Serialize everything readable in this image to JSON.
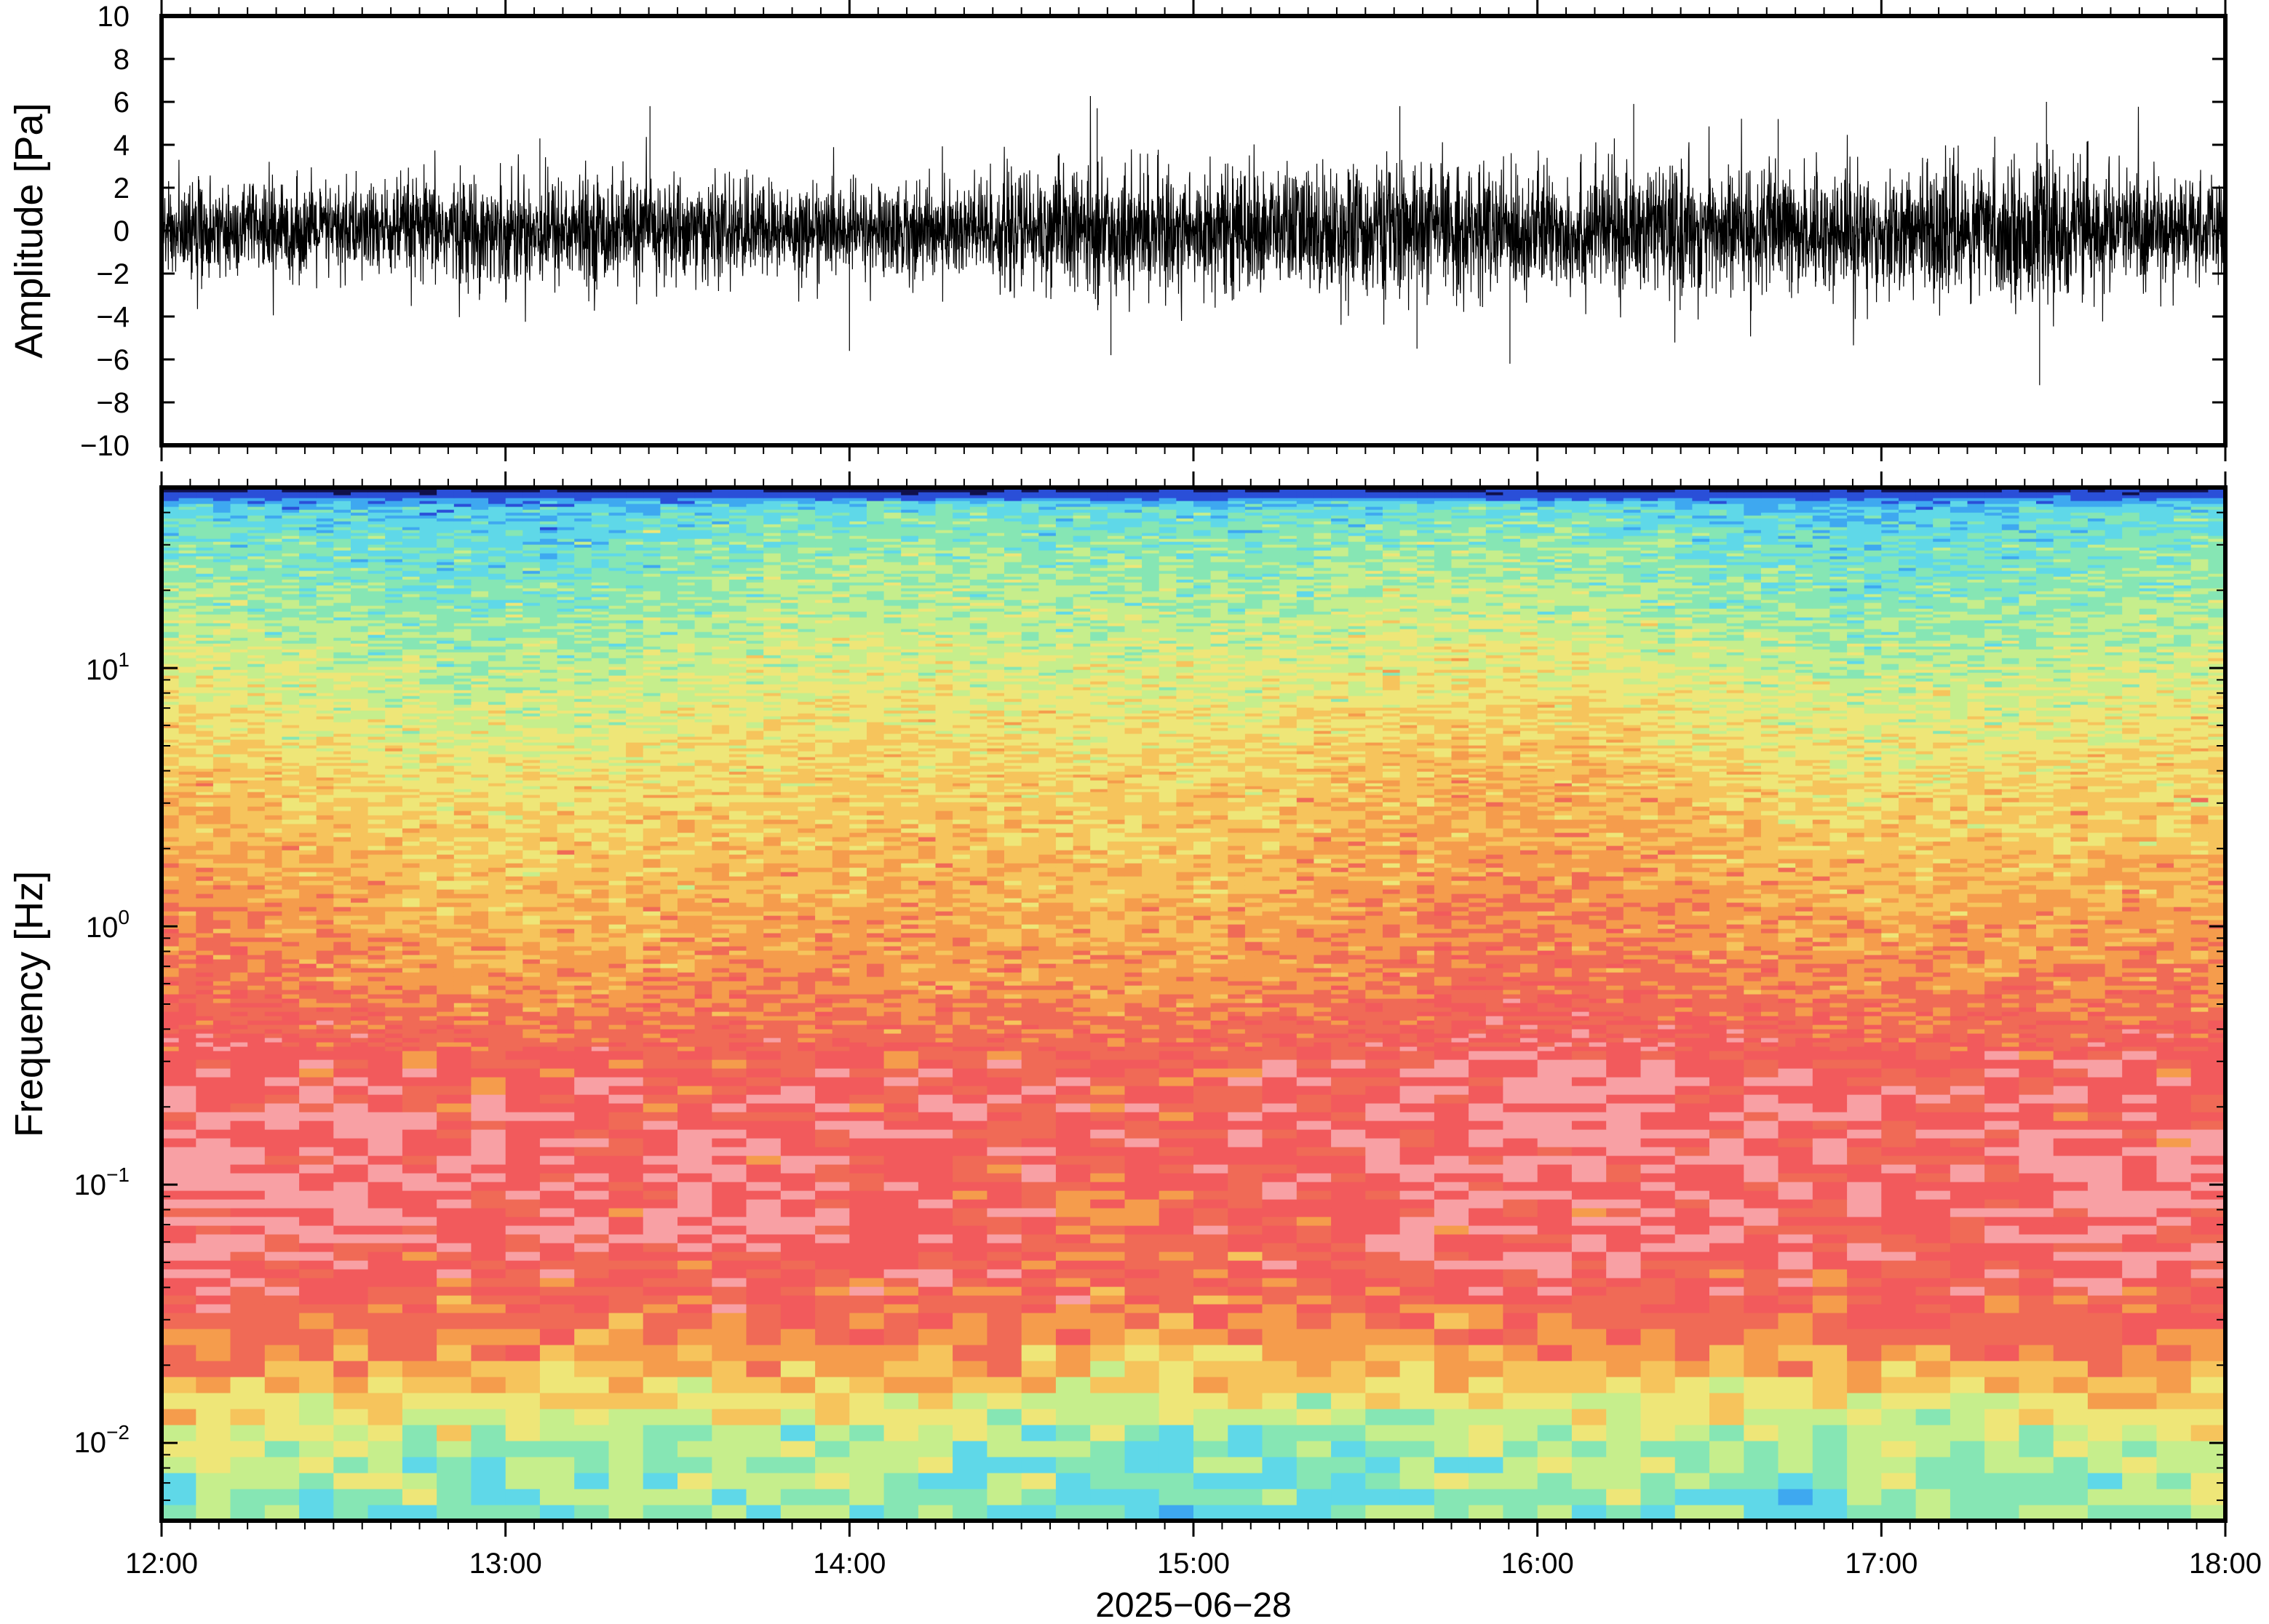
{
  "chart_data": [
    {
      "type": "line",
      "panel": "waveform",
      "ylabel": "Amplitude [Pa]",
      "ylim": [
        -10,
        10
      ],
      "yticks": [
        10,
        8,
        6,
        4,
        2,
        0,
        -2,
        -4,
        -6,
        -8,
        -10
      ],
      "ytick_labels": [
        "10",
        "8",
        "6",
        "4",
        "2",
        "0",
        "−2",
        "−4",
        "−6",
        "−8",
        "−10"
      ],
      "xlim": [
        "12:00",
        "18:00"
      ],
      "series_color": "#000000",
      "envelope_hours": [
        12.0,
        12.5,
        13.0,
        13.5,
        14.0,
        14.5,
        15.0,
        15.5,
        16.0,
        16.5,
        17.0,
        17.5,
        18.0
      ],
      "envelope_pa": [
        2.5,
        2.6,
        3.0,
        2.9,
        2.4,
        3.2,
        3.3,
        3.6,
        3.4,
        3.5,
        3.3,
        3.8,
        2.6
      ],
      "spikes": [
        {
          "t": 13.42,
          "v": 5.8
        },
        {
          "t": 14.0,
          "v": -5.6
        },
        {
          "t": 14.72,
          "v": 5.7
        },
        {
          "t": 14.76,
          "v": -5.8
        },
        {
          "t": 15.6,
          "v": 5.8
        },
        {
          "t": 15.65,
          "v": -5.5
        },
        {
          "t": 15.92,
          "v": -6.2
        },
        {
          "t": 16.28,
          "v": 5.9
        },
        {
          "t": 17.48,
          "v": 6.0
        },
        {
          "t": 17.46,
          "v": -7.2
        },
        {
          "t": 16.7,
          "v": 5.2
        },
        {
          "t": 13.1,
          "v": 4.3
        }
      ]
    },
    {
      "type": "heatmap",
      "panel": "spectrogram",
      "ylabel": "Frequency [Hz]",
      "yscale": "log",
      "ylim": [
        0.005,
        50
      ],
      "ytick_labels": [
        {
          "value": 10,
          "base": "10",
          "exp": "1"
        },
        {
          "value": 1,
          "base": "10",
          "exp": "0"
        },
        {
          "value": 0.1,
          "base": "10",
          "exp": "−1"
        },
        {
          "value": 0.01,
          "base": "10",
          "exp": "−2"
        }
      ],
      "xlim": [
        "12:00",
        "18:00"
      ],
      "xticks": [
        "12:00",
        "13:00",
        "14:00",
        "15:00",
        "16:00",
        "17:00",
        "18:00"
      ],
      "xlabel": "2025−06−28",
      "colormap": [
        "#10104a",
        "#2a4fd8",
        "#3ea8f0",
        "#5fd8e8",
        "#86e6b4",
        "#c6ee8c",
        "#eee678",
        "#f6c45c",
        "#f59c4c",
        "#f06a56",
        "#f25a5c",
        "#f8a0a4"
      ],
      "band_profile": [
        {
          "f": 0.005,
          "level": 3.9
        },
        {
          "f": 0.008,
          "level": 4.3
        },
        {
          "f": 0.011,
          "level": 5.0
        },
        {
          "f": 0.015,
          "level": 6.2
        },
        {
          "f": 0.02,
          "level": 7.6
        },
        {
          "f": 0.028,
          "level": 8.8
        },
        {
          "f": 0.04,
          "level": 9.4
        },
        {
          "f": 0.07,
          "level": 10.0
        },
        {
          "f": 0.12,
          "level": 10.3
        },
        {
          "f": 0.25,
          "level": 9.9
        },
        {
          "f": 0.4,
          "level": 9.2
        },
        {
          "f": 0.6,
          "level": 8.4
        },
        {
          "f": 1.0,
          "level": 7.9
        },
        {
          "f": 2.0,
          "level": 7.2
        },
        {
          "f": 4.0,
          "level": 6.6
        },
        {
          "f": 8.0,
          "level": 5.7
        },
        {
          "f": 15.0,
          "level": 4.8
        },
        {
          "f": 30.0,
          "level": 3.9
        },
        {
          "f": 42.0,
          "level": 3.1
        },
        {
          "f": 46.0,
          "level": 1.6
        },
        {
          "f": 50.0,
          "level": 0.2
        }
      ]
    }
  ]
}
